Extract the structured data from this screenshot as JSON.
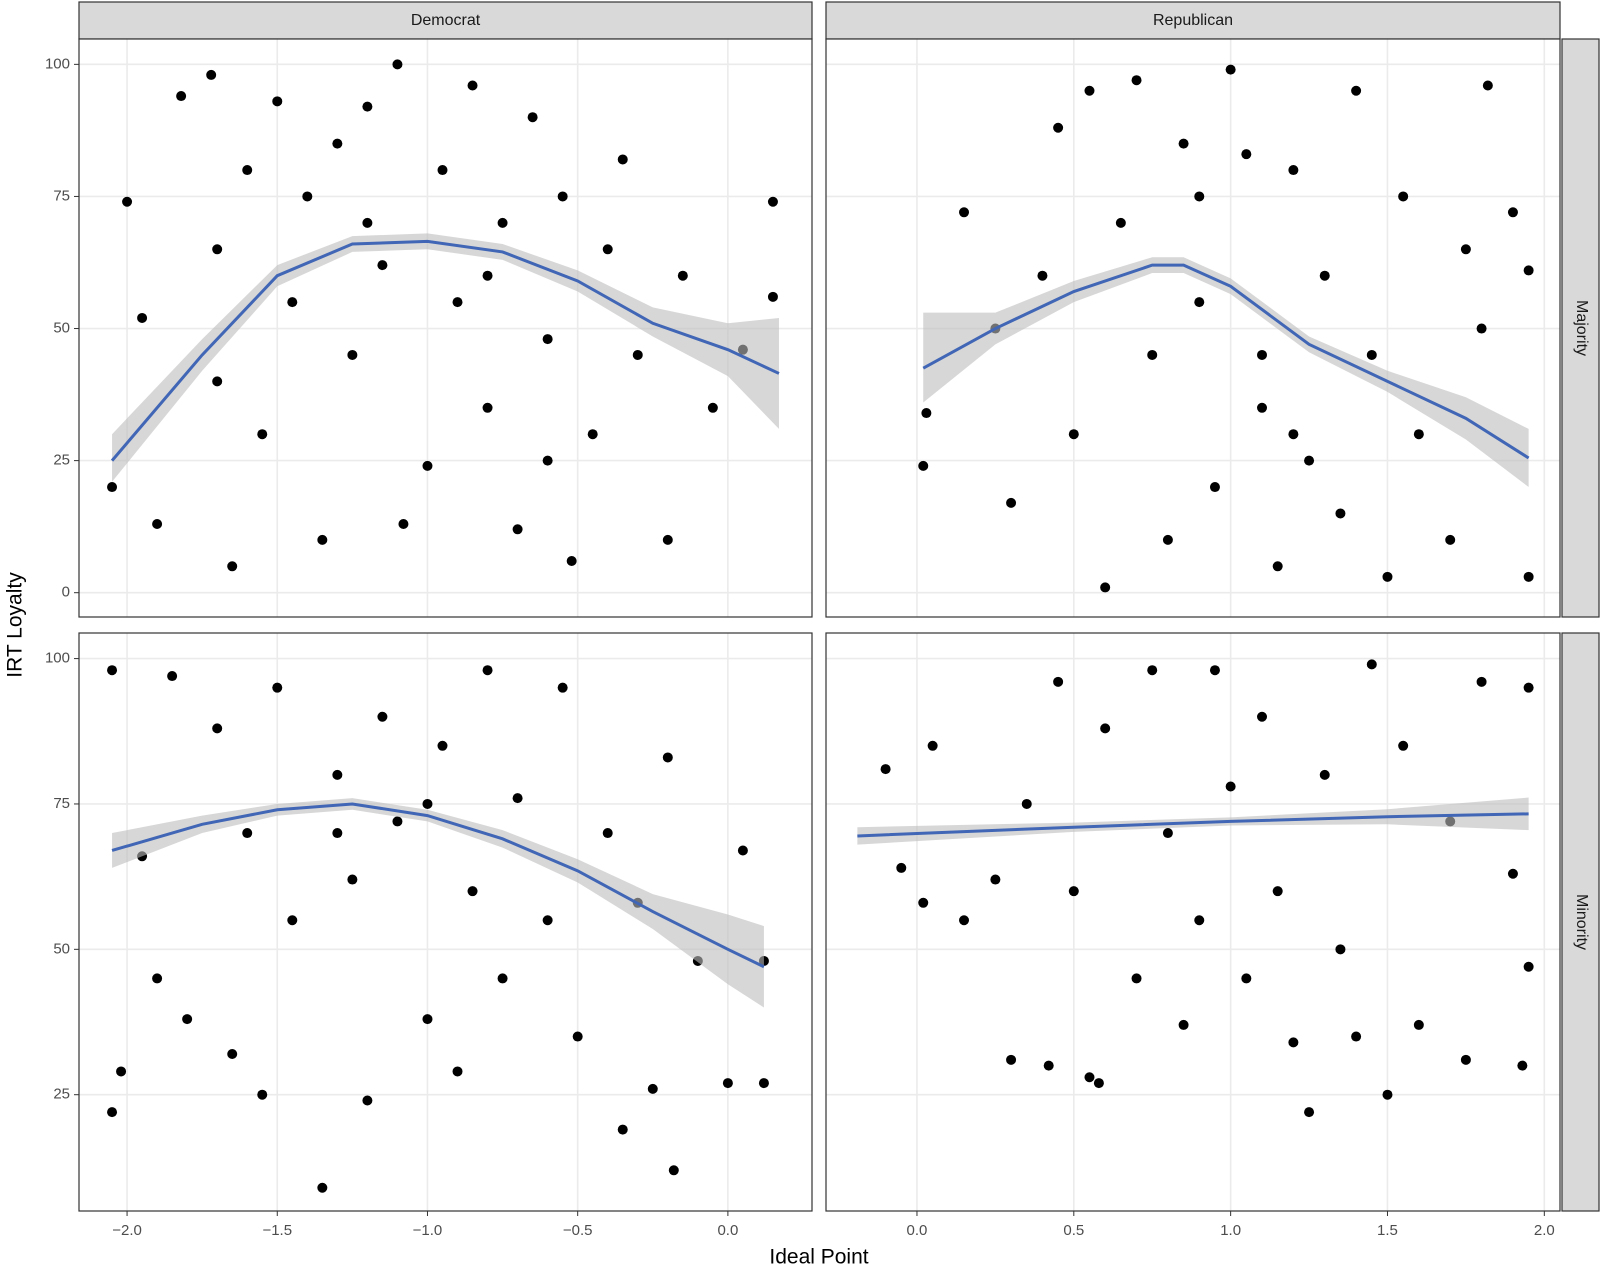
{
  "chart_data": {
    "type": "scatter",
    "x_label": "Ideal Point",
    "y_label": "IRT Loyalty",
    "columns": [
      "Democrat",
      "Republican"
    ],
    "rows": [
      "Majority",
      "Minority"
    ],
    "grid": true,
    "point_color": "#000000",
    "fit_color": "#4066b5",
    "band_color": "#bdbdbd",
    "x_axes": [
      {
        "xlim": [
          -2.16,
          0.28
        ],
        "xticks": [
          {
            "value": -2.0,
            "label": "−2.0"
          },
          {
            "value": -1.5,
            "label": "−1.5"
          },
          {
            "value": -1.0,
            "label": "−1.0"
          },
          {
            "value": -0.5,
            "label": "−0.5"
          },
          {
            "value": 0,
            "label": "0.0"
          }
        ]
      },
      {
        "xlim": [
          -0.29,
          2.05
        ],
        "xticks": [
          {
            "value": 0,
            "label": "0.0"
          },
          {
            "value": 0.5,
            "label": "0.5"
          },
          {
            "value": 1,
            "label": "1.0"
          },
          {
            "value": 1.5,
            "label": "1.5"
          },
          {
            "value": 2,
            "label": "2.0"
          }
        ]
      }
    ],
    "y_axes": [
      {
        "ylim": [
          -4.6,
          104.8
        ],
        "yticks": [
          0,
          25,
          50,
          75,
          100
        ]
      },
      {
        "ylim": [
          5,
          104.4
        ],
        "yticks": [
          25,
          50,
          75,
          100
        ]
      }
    ],
    "panels": [
      {
        "x": [
          -2.05,
          -2.0,
          -1.95,
          -1.9,
          -1.82,
          -1.72,
          -1.7,
          -1.65,
          -1.6,
          -1.55,
          -1.5,
          -1.45,
          -1.4,
          -1.35,
          -1.3,
          -1.25,
          -1.2,
          -1.15,
          -1.1,
          -1.08,
          -1.0,
          -0.95,
          -0.9,
          -0.85,
          -0.8,
          -0.75,
          -0.7,
          -0.65,
          -0.6,
          -0.55,
          -0.52,
          -0.45,
          -0.4,
          -0.35,
          -0.3,
          -0.2,
          -0.15,
          -0.05,
          0.05,
          0.15,
          0.15,
          -1.7,
          -1.2,
          -0.8,
          -0.6
        ],
        "y": [
          20,
          74,
          52,
          13,
          94,
          98,
          40,
          5,
          80,
          30,
          93,
          55,
          75,
          10,
          85,
          45,
          92,
          62,
          100,
          13,
          24,
          80,
          55,
          96,
          35,
          70,
          12,
          90,
          48,
          75,
          6,
          30,
          65,
          82,
          45,
          10,
          60,
          35,
          46,
          74,
          56,
          65,
          70,
          60,
          25
        ],
        "fit": {
          "x": [
            -2.05,
            -1.75,
            -1.5,
            -1.25,
            -1.0,
            -0.75,
            -0.5,
            -0.25,
            0.0,
            0.17
          ],
          "y": [
            25,
            45,
            60,
            66,
            66.5,
            64.5,
            59,
            51,
            46,
            41.5
          ],
          "lower": [
            21,
            42,
            58,
            64.5,
            65,
            63,
            57,
            48.5,
            41,
            31
          ],
          "upper": [
            30,
            48,
            62,
            67.5,
            68,
            66,
            61,
            54,
            51,
            52
          ]
        }
      },
      {
        "x": [
          0.02,
          0.03,
          0.15,
          0.25,
          0.3,
          0.4,
          0.45,
          0.5,
          0.55,
          0.6,
          0.65,
          0.7,
          0.75,
          0.8,
          0.85,
          0.9,
          0.95,
          1.0,
          1.05,
          1.1,
          1.15,
          1.2,
          1.25,
          1.3,
          1.35,
          1.4,
          1.45,
          1.5,
          1.55,
          1.6,
          1.7,
          1.75,
          1.8,
          1.82,
          1.9,
          1.95,
          1.95,
          0.9,
          1.1,
          1.2
        ],
        "y": [
          24,
          34,
          72,
          50,
          17,
          60,
          88,
          30,
          95,
          1,
          70,
          97,
          45,
          10,
          85,
          55,
          20,
          99,
          83,
          35,
          5,
          80,
          25,
          60,
          15,
          95,
          45,
          3,
          75,
          30,
          10,
          65,
          50,
          96,
          72,
          61,
          3,
          75,
          45,
          30
        ],
        "fit": {
          "x": [
            0.02,
            0.25,
            0.5,
            0.75,
            0.85,
            1.0,
            1.25,
            1.5,
            1.75,
            1.95
          ],
          "y": [
            42.5,
            50,
            57,
            62,
            62,
            58,
            47,
            40,
            33,
            25.5
          ],
          "lower": [
            36,
            47,
            55,
            60.5,
            60.5,
            56.5,
            45.5,
            38,
            29,
            20
          ],
          "upper": [
            53,
            53,
            59,
            63.5,
            63.5,
            59.5,
            48.5,
            42,
            37,
            31
          ]
        }
      },
      {
        "x": [
          -2.05,
          -2.05,
          -2.02,
          -1.95,
          -1.9,
          -1.85,
          -1.8,
          -1.7,
          -1.65,
          -1.6,
          -1.55,
          -1.5,
          -1.45,
          -1.35,
          -1.3,
          -1.25,
          -1.2,
          -1.15,
          -1.1,
          -1.0,
          -0.95,
          -0.9,
          -0.85,
          -0.8,
          -0.75,
          -0.7,
          -0.6,
          -0.55,
          -0.5,
          -0.4,
          -0.35,
          -0.3,
          -0.25,
          -0.2,
          -0.18,
          -0.1,
          0.0,
          0.05,
          0.12,
          0.12,
          -1.3,
          -1.0
        ],
        "y": [
          98,
          22,
          29,
          66,
          45,
          97,
          38,
          88,
          32,
          70,
          25,
          95,
          55,
          9,
          80,
          62,
          24,
          90,
          72,
          38,
          85,
          29,
          60,
          98,
          45,
          76,
          55,
          95,
          35,
          70,
          19,
          58,
          26,
          83,
          12,
          48,
          27,
          67,
          48,
          27,
          70,
          75
        ],
        "fit": {
          "x": [
            -2.05,
            -1.75,
            -1.5,
            -1.25,
            -1.0,
            -0.75,
            -0.5,
            -0.25,
            0.0,
            0.12
          ],
          "y": [
            67,
            71.5,
            74,
            75,
            73,
            69,
            63.5,
            56.5,
            50,
            47
          ],
          "lower": [
            64,
            70,
            73,
            74,
            72,
            67.5,
            61.5,
            53.5,
            44,
            40
          ],
          "upper": [
            70,
            73,
            75,
            76,
            74,
            70.5,
            65.5,
            59.5,
            56,
            54
          ]
        }
      },
      {
        "x": [
          -0.1,
          -0.05,
          0.02,
          0.05,
          0.15,
          0.25,
          0.3,
          0.35,
          0.42,
          0.45,
          0.5,
          0.55,
          0.58,
          0.6,
          0.7,
          0.75,
          0.8,
          0.85,
          0.9,
          0.95,
          1.0,
          1.05,
          1.1,
          1.15,
          1.2,
          1.25,
          1.3,
          1.35,
          1.4,
          1.45,
          1.5,
          1.55,
          1.6,
          1.7,
          1.75,
          1.8,
          1.9,
          1.93,
          1.95,
          1.95
        ],
        "y": [
          81,
          64,
          58,
          85,
          55,
          62,
          31,
          75,
          30,
          96,
          60,
          28,
          27,
          88,
          45,
          98,
          70,
          37,
          55,
          98,
          78,
          45,
          90,
          60,
          34,
          22,
          80,
          50,
          35,
          99,
          25,
          85,
          37,
          72,
          31,
          96,
          63,
          30,
          95,
          47
        ],
        "fit": {
          "x": [
            -0.19,
            0.5,
            1.0,
            1.5,
            1.95
          ],
          "y": [
            69.5,
            71,
            72,
            72.8,
            73.3
          ],
          "lower": [
            68,
            70.2,
            71.3,
            71.5,
            70.5
          ],
          "upper": [
            71,
            71.8,
            72.7,
            74.1,
            76.1
          ]
        }
      }
    ]
  }
}
